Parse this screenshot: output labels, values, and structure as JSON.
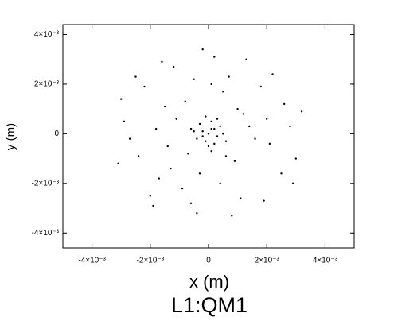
{
  "chart_data": {
    "type": "scatter",
    "title": "L1:QM1",
    "xlabel": "x (m)",
    "ylabel": "y (m)",
    "color": "#000000",
    "xlim": [
      -0.005,
      0.005
    ],
    "ylim": [
      -0.0046,
      0.0044
    ],
    "xticks": [
      {
        "value": -0.004,
        "label": "-4×10⁻³"
      },
      {
        "value": -0.002,
        "label": "-2×10⁻³"
      },
      0,
      {
        "value": 0.002,
        "label": "2×10⁻³"
      },
      {
        "value": 0.004,
        "label": "4×10⁻³"
      }
    ],
    "yticks": [
      {
        "value": -0.004,
        "label": "-4×10⁻³"
      },
      {
        "value": -0.002,
        "label": "-2×10⁻³"
      },
      0,
      {
        "value": 0.002,
        "label": "2×10⁻³"
      },
      {
        "value": 0.004,
        "label": "4×10⁻³"
      }
    ],
    "x": [
      0.0001,
      -0.0002,
      0.0003,
      -0.0001,
      0.0,
      0.0004,
      -0.0004,
      0.0002,
      -0.0003,
      0.0005,
      -0.0005,
      0.0001,
      0.0,
      -0.0002,
      0.0002,
      0.0006,
      -0.0006,
      0.0003,
      -0.0001,
      0.0001,
      0.0012,
      -0.0015,
      0.0021,
      -0.0024,
      0.0007,
      -0.0009,
      0.0018,
      -0.0017,
      0.0028,
      -0.0029,
      0.0002,
      -0.0004,
      0.0011,
      -0.0012,
      0.0025,
      -0.0022,
      0.0009,
      -0.0008,
      0.0016,
      -0.0014,
      0.003,
      -0.0031,
      0.0022,
      -0.002,
      0.0005,
      -0.0003,
      0.0014,
      -0.0011,
      0.0026,
      -0.0027,
      0.0019,
      -0.0016,
      0.0001,
      -0.0006,
      0.0032,
      -0.003,
      0.0008,
      -0.0002,
      0.0013,
      -0.0019,
      0.0029,
      -0.0025,
      0.0006,
      -0.0007,
      0.001,
      -0.0013,
      0.002,
      -0.0018,
      0.0004,
      -0.0005
    ],
    "y": [
      0.0002,
      0.0001,
      -0.0001,
      -0.0003,
      0.0,
      0.0003,
      -0.0002,
      -0.0004,
      0.0004,
      0.0,
      0.0001,
      0.0005,
      -0.0005,
      -0.0001,
      0.0002,
      -0.0003,
      0.0002,
      0.0006,
      0.0007,
      -0.0007,
      0.0008,
      0.0011,
      -0.0004,
      -0.0009,
      0.0023,
      -0.0022,
      0.0019,
      -0.0018,
      0.0003,
      0.0005,
      0.0031,
      -0.0032,
      -0.0026,
      0.0027,
      -0.0016,
      0.0019,
      -0.0011,
      0.0013,
      -0.0002,
      -0.0005,
      -0.001,
      -0.0012,
      0.0024,
      -0.0025,
      0.0017,
      -0.0016,
      0.0003,
      0.0006,
      0.0012,
      -0.0002,
      -0.0027,
      0.0029,
      0.002,
      -0.0028,
      0.0009,
      0.0014,
      -0.0033,
      0.0034,
      0.003,
      -0.0029,
      -0.002,
      0.0023,
      -0.0009,
      -0.0008,
      0.001,
      -0.0014,
      0.0006,
      0.0002,
      -0.002,
      0.0022
    ]
  }
}
